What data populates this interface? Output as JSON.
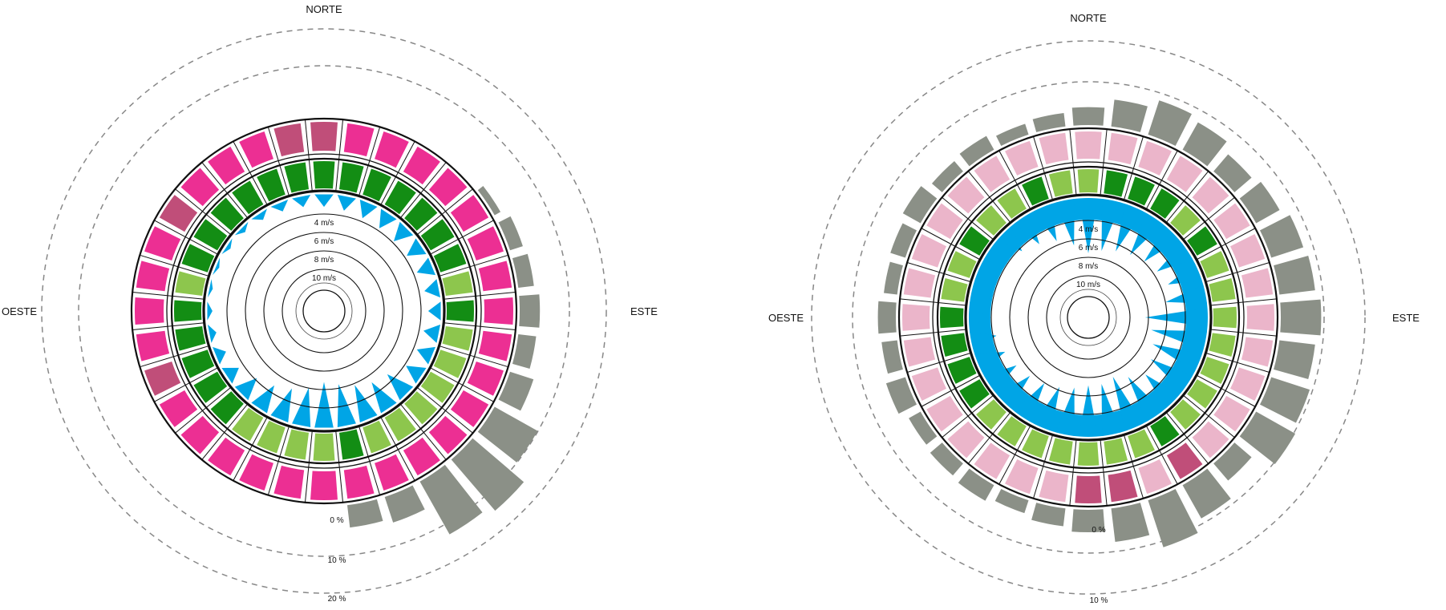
{
  "chart_data": [
    {
      "type": "radial-bar",
      "directions": 32,
      "compass": {
        "north": "NORTE",
        "east": "ESTE",
        "west": "OESTE"
      },
      "speed_labels": [
        "4 m/s",
        "6 m/s",
        "8 m/s",
        "10 m/s"
      ],
      "percent_labels": [
        "0 %",
        "10 %",
        "20 %"
      ],
      "colors": {
        "speed": "#00a5e6",
        "pink": "#ec2f93",
        "pink_dark": "#c04e79",
        "green": "#138d14",
        "green_light": "#8dc64d",
        "gray": "#8b9087"
      },
      "speed_rays": [
        0.7,
        0.8,
        0.9,
        0.95,
        1.0,
        0.95,
        0.9,
        0.8,
        0.7,
        0.85,
        0.9,
        1.0,
        1.5,
        1.7,
        2.0,
        2.3,
        2.5,
        2.1,
        1.8,
        1.5,
        1.2,
        0.8,
        0.6,
        0.4,
        0.3,
        0.2,
        0.2,
        0.25,
        0.3,
        0.4,
        0.5,
        0.6
      ],
      "pink_ring": [
        "dark",
        "pink",
        "pink",
        "pink",
        "pink",
        "pink",
        "pink",
        "pink",
        "pink",
        "pink",
        "pink",
        "pink",
        "pink",
        "pink",
        "pink",
        "pink",
        "pink",
        "pink",
        "pink",
        "pink",
        "pink",
        "pink",
        "dark",
        "pink",
        "pink",
        "pink",
        "pink",
        "dark",
        "pink",
        "pink",
        "pink",
        "dark"
      ],
      "green_ring": [
        "dark",
        "dark",
        "dark",
        "dark",
        "dark",
        "dark",
        "dark",
        "light",
        "dark",
        "light",
        "light",
        "light",
        "light",
        "light",
        "light",
        "dark",
        "light",
        "light",
        "light",
        "light",
        "dark",
        "dark",
        "dark",
        "dark",
        "dark",
        "light",
        "dark",
        "dark",
        "dark",
        "dark",
        "dark",
        "dark"
      ],
      "gray_bars": [
        0,
        0,
        0,
        0,
        0,
        0.3,
        0.6,
        0.7,
        0.9,
        0.8,
        1.1,
        2.2,
        3.0,
        2.7,
        1.2,
        1.0,
        0,
        0,
        0,
        0,
        0,
        0,
        0,
        0,
        0,
        0,
        0,
        0,
        0,
        0,
        0,
        0
      ]
    },
    {
      "type": "radial-bar",
      "directions": 32,
      "compass": {
        "north": "NORTE",
        "east": "ESTE",
        "west": "OESTE"
      },
      "speed_labels": [
        "4 m/s",
        "6 m/s",
        "8 m/s",
        "10 m/s"
      ],
      "percent_labels": [
        "0 %",
        "10 %"
      ],
      "colors": {
        "speed": "#00a5e6",
        "pink": "#ebb5ca",
        "pink_dark": "#c04e79",
        "green": "#138d14",
        "green_light": "#8dc64d",
        "gray": "#8b9087"
      },
      "speed_rays": [
        3.0,
        2.8,
        2.6,
        2.4,
        2.2,
        2.0,
        1.8,
        2.2,
        3.4,
        3.0,
        2.7,
        2.4,
        2.1,
        2.6,
        3.0,
        2.8,
        2.8,
        2.6,
        2.4,
        2.2,
        2.0,
        1.8,
        1.6,
        1.4,
        1.2,
        1.1,
        1.1,
        1.2,
        1.4,
        1.7,
        2.0,
        2.5
      ],
      "pink_ring": [
        "pink",
        "pink",
        "pink",
        "pink",
        "pink",
        "pink",
        "pink",
        "pink",
        "pink",
        "pink",
        "pink",
        "pink",
        "pink",
        "dark",
        "pink",
        "dark",
        "dark",
        "pink",
        "pink",
        "pink",
        "pink",
        "pink",
        "pink",
        "pink",
        "pink",
        "pink",
        "pink",
        "pink",
        "pink",
        "pink",
        "pink",
        "pink"
      ],
      "green_ring": [
        "light",
        "dark",
        "dark",
        "dark",
        "light",
        "dark",
        "light",
        "light",
        "light",
        "light",
        "light",
        "light",
        "light",
        "dark",
        "light",
        "light",
        "light",
        "light",
        "light",
        "light",
        "light",
        "dark",
        "dark",
        "dark",
        "dark",
        "light",
        "light",
        "dark",
        "light",
        "light",
        "dark",
        "light"
      ],
      "gray_bars": [
        0.8,
        1.2,
        1.6,
        1.4,
        1.0,
        1.2,
        1.5,
        1.6,
        1.8,
        1.6,
        1.8,
        2.0,
        1.0,
        1.7,
        2.2,
        1.5,
        1.0,
        0.8,
        0.6,
        0.8,
        0.7,
        0.6,
        0.9,
        0.7,
        0.8,
        0.6,
        0.7,
        0.9,
        0.6,
        0.7,
        0.5,
        0.6
      ]
    }
  ]
}
